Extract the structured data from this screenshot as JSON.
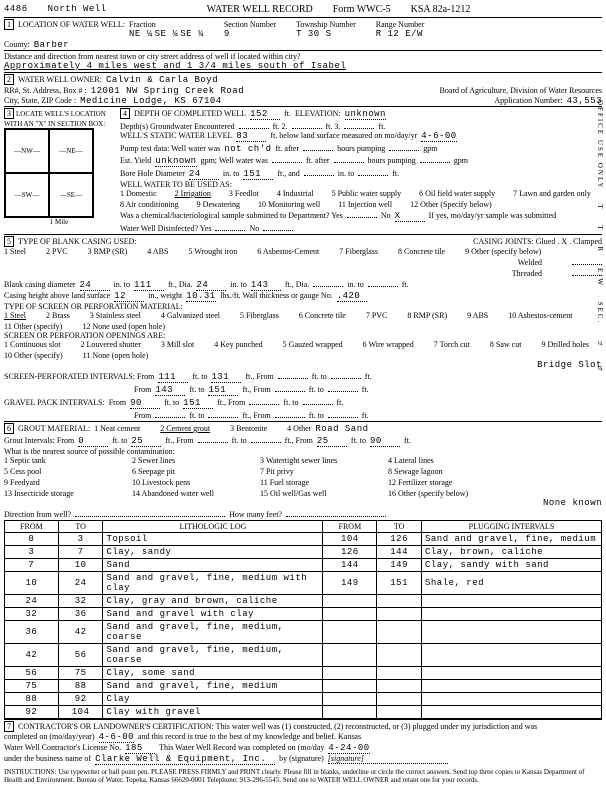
{
  "header": {
    "well_id": "4486",
    "well_name": "North Well",
    "form_title": "WATER WELL RECORD",
    "form_code": "Form WWC-5",
    "ksa": "KSA 82a-1212"
  },
  "sec1": {
    "title": "LOCATION OF WATER WELL:",
    "county_label": "County:",
    "county": "Barber",
    "fraction": "Fraction",
    "q1": "NE ¼",
    "q2": "SE ¼",
    "q3": "SE ¼",
    "section_label": "Section Number",
    "section": "9",
    "township_label": "Township Number",
    "township": "T 30 S",
    "range_label": "Range Number",
    "range": "R 12 E/W",
    "distance_label": "Distance and direction from nearest town or city street address of well if located within city?",
    "distance": "Approximately 4 miles west and 1 3/4 miles south of Isabel"
  },
  "sec2": {
    "title": "WATER WELL OWNER:",
    "name": "Calvin & Carla Boyd",
    "addr_label": "RR#, St. Address, Box # :",
    "addr": "12001 NW Spring Creek Road",
    "city_label": "City, State, ZIP Code :",
    "city": "Medicine Lodge, KS 67104",
    "board": "Board of Agriculture, Division of Water Resources",
    "app_label": "Application Number:",
    "app_num": "43,553"
  },
  "sec3": {
    "title": "LOCATE WELL'S LOCATION WITH AN \"X\" IN SECTION BOX:",
    "nw": "NW",
    "ne": "NE",
    "sw": "SW",
    "se": "SE",
    "s": "S",
    "n": "N",
    "w": "W",
    "e": "E",
    "mile": "1 Mile"
  },
  "sec4": {
    "depth_label": "DEPTH OF COMPLETED WELL",
    "depth": "152",
    "ft": "ft.",
    "elev_label": "ELEVATION:",
    "elev": "unknown",
    "gw_label": "Depth(s) Groundwater Encountered",
    "gw1": "1",
    "gw2": "ft. 2.",
    "gw3": "ft. 3.",
    "static_label": "WELL'S STATIC WATER LEVEL",
    "static": "83",
    "static_suffix": "ft. below land surface measured on mo/day/yr",
    "static_date": "4-6-00",
    "pump_label": "Pump test data: Well water was",
    "pump_val": "not ch'd",
    "pump_suffix": "ft. after",
    "hours_pump": "hours pumping",
    "gpm": "gpm",
    "yield_label": "Est. Yield",
    "yield": "unknown",
    "yield_suffix": "gpm; Well water was",
    "after": "ft. after",
    "bore_label": "Bore Hole Diameter",
    "bore1": "24",
    "in_to": "in. to",
    "bore2": "151",
    "ft_and": "ft., and",
    "use_label": "WELL WATER TO BE USED AS:",
    "uses": [
      "1 Domestic",
      "2 Irrigation",
      "3 Feedlot",
      "4 Industrial",
      "5 Public water supply",
      "6 Oil field water supply",
      "7 Lawn and garden only",
      "8 Air conditioning",
      "9 Dewatering",
      "10 Monitoring well",
      "11 Injection well",
      "12 Other (Specify below)"
    ],
    "chem_label": "Was a chemical/bacteriological sample submitted to Department? Yes",
    "chem_no": "No",
    "chem_x": "X",
    "chem_suffix": "If yes, mo/day/yr sample was submitted",
    "disinfect": "Water Well Disinfected? Yes",
    "disinfect_no": "No"
  },
  "sec5": {
    "title": "TYPE OF BLANK CASING USED:",
    "joints": "CASING JOINTS: Glued . X . Clamped",
    "welded": "Welded",
    "threaded": "Threaded",
    "opts1": [
      "1 Steel",
      "2 PVC",
      "3 RMP (SR)",
      "4 ABS",
      "5 Wrought iron",
      "6 Asbestos-Cement",
      "7 Fiberglass",
      "8 Concrete tile",
      "9 Other (specify below)"
    ],
    "casing_dia_label": "Blank casing diameter",
    "cd1": "24",
    "cd2": "111",
    "cd3": "24",
    "cd4": "143",
    "height_label": "Casing height above land surface",
    "height": "12",
    "weight_label": "in., weight",
    "weight": "10.31",
    "weight_suffix": "lbs./ft. Wall thickness or gauge No.",
    "wall": ".420",
    "screen_title": "TYPE OF SCREEN OR PERFORATION MATERIAL:",
    "opts2": [
      "1 Steel",
      "2 Brass",
      "3 Stainless steel",
      "4 Galvanized steel",
      "5 Fiberglass",
      "6 Concrete tile",
      "7 PVC",
      "8 RMP (SR)",
      "9 ABS",
      "10 Asbestos-cement",
      "11 Other (specify)",
      "12 None used (open hole)"
    ],
    "open_title": "SCREEN OR PERFORATION OPENINGS ARE:",
    "opts3": [
      "1 Continuous slot",
      "2 Louvered shutter",
      "3 Mill slot",
      "4 Key punched",
      "5 Gauzed wrapped",
      "6 Wire wrapped",
      "7 Torch cut",
      "8 Saw cut",
      "9 Drilled holes",
      "10 Other (specify)",
      "11 None (open hole)"
    ],
    "other_screen": "Bridge Slot",
    "perf_label": "SCREEN-PERFORATED INTERVALS: From",
    "p1f": "111",
    "p1t": "131",
    "p2f": "143",
    "p2t": "151",
    "gravel_label": "GRAVEL PACK INTERVALS:",
    "g1f": "90",
    "g1t": "151"
  },
  "sec6": {
    "title": "GROUT MATERIAL:",
    "opts": [
      "1 Neat cement",
      "2 Cement grout",
      "3 Bentonite",
      "4 Other"
    ],
    "other": "Road Sand",
    "intervals": "Grout Intervals: From",
    "gi1f": "0",
    "gi1t": "25",
    "gi2f": "25",
    "gi2t": "90",
    "contam_label": "What is the nearest source of possible contamination:",
    "contam_opts": [
      "1 Septic tank",
      "2 Sewer lines",
      "3 Watertight sewer lines",
      "4 Lateral lines",
      "5 Cess pool",
      "6 Seepage pit",
      "7 Pit privy",
      "8 Sewage lagoon",
      "9 Feedyard",
      "10 Livestock pens",
      "11 Fuel storage",
      "12 Fertilizer storage",
      "13 Insecticide storage",
      "14 Abandoned water well",
      "15 Oil well/Gas well",
      "16 Other (specify below)"
    ],
    "contam_other": "None known",
    "dir_label": "Direction from well?",
    "feet_label": "How many feet?"
  },
  "log": {
    "litho_title": "LITHOLOGIC LOG",
    "plug_title": "PLUGGING INTERVALS",
    "from": "FROM",
    "to": "TO",
    "rows": [
      {
        "f": "0",
        "t": "3",
        "d": "Topsoil"
      },
      {
        "f": "3",
        "t": "7",
        "d": "Clay, sandy"
      },
      {
        "f": "7",
        "t": "10",
        "d": "Sand"
      },
      {
        "f": "10",
        "t": "24",
        "d": "Sand and gravel, fine, medium with clay"
      },
      {
        "f": "24",
        "t": "32",
        "d": "Clay, gray and brown, caliche"
      },
      {
        "f": "32",
        "t": "36",
        "d": "Sand and gravel with clay"
      },
      {
        "f": "36",
        "t": "42",
        "d": "Sand and gravel, fine, medium, coarse"
      },
      {
        "f": "42",
        "t": "56",
        "d": "Sand and gravel, fine, medium, coarse"
      },
      {
        "f": "56",
        "t": "75",
        "d": "Clay, some sand"
      },
      {
        "f": "75",
        "t": "88",
        "d": "Sand and gravel, fine, medium"
      },
      {
        "f": "88",
        "t": "92",
        "d": "Clay"
      },
      {
        "f": "92",
        "t": "104",
        "d": "Clay with gravel"
      }
    ],
    "plug_rows": [
      {
        "f": "104",
        "t": "126",
        "d": "Sand and gravel, fine, medium"
      },
      {
        "f": "126",
        "t": "144",
        "d": "Clay, brown, caliche"
      },
      {
        "f": "144",
        "t": "149",
        "d": "Clay, sandy with sand"
      },
      {
        "f": "149",
        "t": "151",
        "d": "Shale, red"
      }
    ]
  },
  "sec7": {
    "title": "CONTRACTOR'S OR LANDOWNER'S CERTIFICATION: This water well was (1) constructed, (2) reconstructed, or (3) plugged under my jurisdiction and was",
    "completed_label": "completed on (mo/day/year)",
    "date1": "4-6-00",
    "suffix1": "and this record is true to the best of my knowledge and belief. Kansas",
    "lic_label": "Water Well Contractor's License No.",
    "lic": "185",
    "suffix2": "This Water Well Record was completed on (mo/day",
    "date2": "4-24-00",
    "business_label": "under the business name of",
    "business": "Clarke Well & Equipment, Inc.",
    "sig_label": "by (signature)",
    "instructions": "INSTRUCTIONS: Use typewriter or ball point pen. PLEASE PRESS FIRMLY and PRINT clearly. Please fill in blanks, underline or circle the correct answers. Send top three copies to Kansas Department of Health and Environment. Bureau of Water, Topeka, Kansas 66620-0001 Telephone: 913-296-5545. Send one to WATER WELL OWNER and retain one for your records."
  }
}
